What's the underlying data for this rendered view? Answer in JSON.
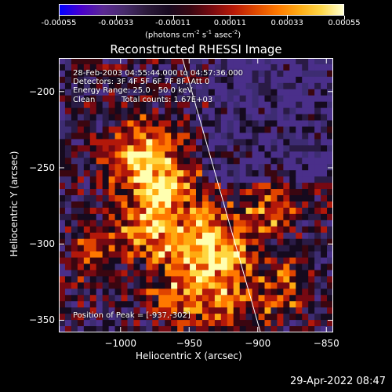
{
  "colorbar": {
    "colors": [
      "#0000ff",
      "#4a00cc",
      "#5b2a93",
      "#462b6a",
      "#2b1a3a",
      "#180a20",
      "#3a0712",
      "#7a0a0f",
      "#b91a07",
      "#e04a00",
      "#ff7a00",
      "#ffad15",
      "#ffd84a",
      "#ffffd0"
    ],
    "tick_labels": [
      "-0.00055",
      "-0.00033",
      "-0.00011",
      "0.00011",
      "0.00033",
      "0.00055"
    ],
    "units_text": "(photons cm",
    "units_exp1": "-2",
    "units_mid": " s",
    "units_exp2": "-1",
    "units_tail": " asec",
    "units_exp3": "-2",
    "units_close": ")"
  },
  "chart_data": {
    "type": "heatmap",
    "title": "Reconstructed RHESSI Image",
    "xlabel": "Heliocentric X (arcsec)",
    "ylabel": "Heliocentric Y (arcsec)",
    "xlim": [
      -1045,
      -845
    ],
    "ylim": [
      -358,
      -178
    ],
    "x_ticks": [
      -1000,
      -950,
      -900,
      -850
    ],
    "y_ticks": [
      -350,
      -300,
      -250,
      -200
    ],
    "x_tick_labels": [
      "−1000",
      "−950",
      "−900",
      "−850"
    ],
    "y_tick_labels": [
      "−350",
      "−300",
      "−250",
      "−200"
    ],
    "peak": [
      -937,
      -302
    ],
    "limb_line": [
      [
        -955,
        -178
      ],
      [
        -898,
        -358
      ]
    ]
  },
  "annotations": {
    "time": "28-Feb-2003 04:55:44.000 to 04:57:36.000",
    "detectors": "Detectors: 3F 4F 5F 6F 7F 8F, Att 0",
    "energy": "Energy Range: 25.0 - 50.0 keV",
    "method": "Clean",
    "counts": "Total counts: 1.67E+03",
    "peak": "Position of Peak = [-937,-302]"
  },
  "footer": {
    "date": "29-Apr-2022 08:47"
  }
}
